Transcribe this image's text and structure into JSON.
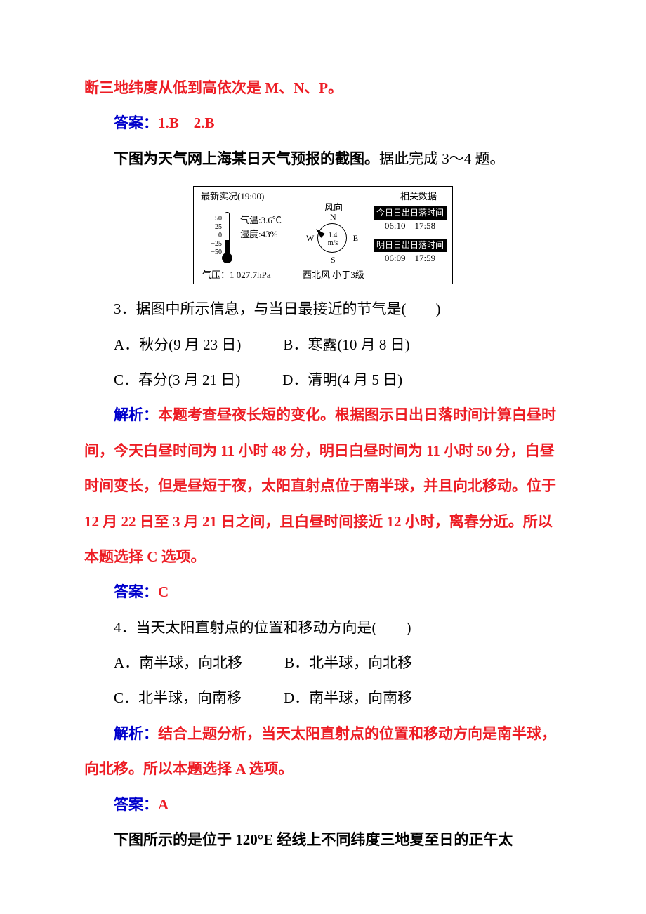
{
  "intro_fragment": "断三地纬度从低到高依次是 M、N、P。",
  "answer12_label": "答案：",
  "answer12_value": "1.B　2.B",
  "fig_intro_bold": "下图为天气网上海某日天气预报的截图。",
  "fig_intro_tail": "据此完成 3～4 题。",
  "diagram": {
    "left_title": "最新实况(19:00)",
    "right_title": "相关数据",
    "scale": [
      "50",
      "25",
      "0",
      "−25",
      "−50"
    ],
    "temp": "气温:3.6℃",
    "humidity": "湿度:43%",
    "pressure": "气压：1 027.7hPa",
    "wind_label": "风向",
    "compass_n": "N",
    "compass_s": "S",
    "compass_w": "W",
    "compass_e": "E",
    "wind_speed": "1.4",
    "wind_unit": "m/s",
    "wind_desc": "西北风  小于3级",
    "today_header": "今日日出日落时间",
    "today_times": "06:10　17:58",
    "tomorrow_header": "明日日出日落时间",
    "tomorrow_times": "06:09　17:59"
  },
  "q3": {
    "stem": "3．据图中所示信息，与当日最接近的节气是(　　)",
    "optA": "A．秋分(9 月 23 日)",
    "optB": "B．寒露(10 月 8 日)",
    "optC": "C．春分(3 月 21 日)",
    "optD": "D．清明(4 月 5 日)"
  },
  "q3_expl_label": "解析：",
  "q3_expl_body": "本题考查昼夜长短的变化。根据图示日出日落时间计算白昼时间，今天白昼时间为 11 小时 48 分，明日白昼时间为 11 小时 50 分，白昼时间变长，但是昼短于夜，太阳直射点位于南半球，并且向北移动。位于 12 月 22 日至 3 月 21 日之间，且白昼时间接近 12 小时，离春分近。所以本题选择 C 选项。",
  "q3_ans_label": "答案：",
  "q3_ans_value": "C",
  "q4": {
    "stem": "4．当天太阳直射点的位置和移动方向是(　　)",
    "optA": "A．南半球，向北移",
    "optB": "B．北半球，向北移",
    "optC": "C．北半球，向南移",
    "optD": "D．南半球，向南移"
  },
  "q4_expl_label": "解析：",
  "q4_expl_body": "结合上题分析，当天太阳直射点的位置和移动方向是南半球，向北移。所以本题选择 A 选项。",
  "q4_ans_label": "答案：",
  "q4_ans_value": "A",
  "next_fig_intro": "下图所示的是位于 120°E 经线上不同纬度三地夏至日的正午太"
}
